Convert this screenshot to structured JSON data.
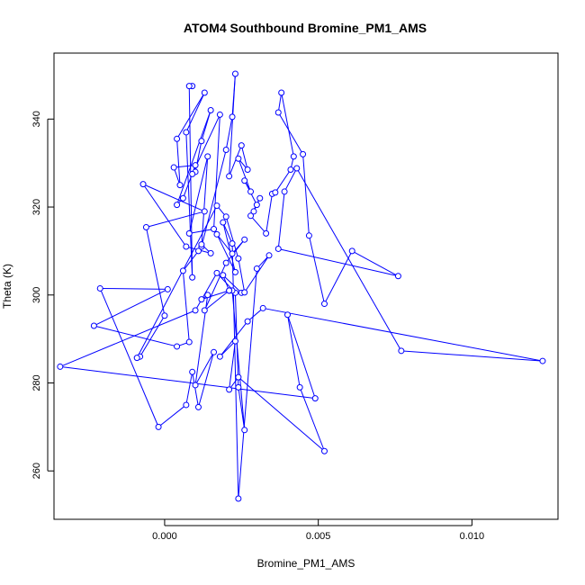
{
  "chart_data": {
    "type": "line",
    "title": "ATOM4 Southbound Bromine_PM1_AMS",
    "xlabel": "Bromine_PM1_AMS",
    "ylabel": "Theta (K)",
    "xlim": [
      -0.0036,
      0.0128
    ],
    "ylim": [
      249,
      355
    ],
    "xticks": [
      0.0,
      0.005,
      0.01
    ],
    "xtick_labels": [
      "0.000",
      "0.005",
      "0.010"
    ],
    "yticks": [
      260,
      280,
      300,
      320,
      340
    ],
    "yticks_labels": [
      "260",
      "280",
      "300",
      "320",
      "340"
    ],
    "grid": false,
    "legend": "none",
    "color": "#0000ff",
    "marker": "open-circle",
    "series": [
      {
        "x": [
          0.0009,
          0.0008,
          0.0009,
          0.0007,
          0.0013,
          0.0004,
          0.0005,
          0.0003,
          0.001,
          0.0006,
          0.0004,
          0.0015,
          0.0012,
          0.001,
          0.0009,
          0.0018,
          0.0016,
          0.0008,
          0.0014,
          0.0012,
          0.002,
          0.0022,
          0.0023,
          0.0021,
          0.0025,
          0.0027,
          0.0024,
          0.0028,
          0.0026,
          0.003,
          0.0029,
          0.0031,
          0.0028,
          0.0033,
          0.0035,
          0.0036,
          0.0041,
          0.0042,
          0.0038,
          0.0037,
          0.0045,
          0.0047,
          0.0052,
          0.0061,
          0.0076,
          0.0037,
          0.0039,
          0.0043,
          0.0077,
          0.0123,
          0.0032,
          0.0027,
          0.0018,
          0.0023,
          0.0021,
          0.0024,
          0.0052,
          0.0044,
          0.004,
          0.0049,
          -0.0034,
          0.001,
          0.0017,
          0.0023,
          0.0024,
          0.0026,
          0.0022,
          0.0025,
          0.0019,
          0.0021,
          0.0012,
          0.0014,
          0.001,
          0.0016,
          0.0011,
          0.0009,
          0.0007,
          -0.0002,
          -0.0021,
          0.0001,
          -0.0023,
          0.0004,
          0.0008,
          0.0006,
          0.0011,
          0.0012,
          0.0015,
          0.0007,
          -0.0007,
          0.0013,
          -0.0006,
          0.0,
          -0.0008,
          -0.0009,
          0.0017,
          0.002,
          0.0024,
          0.0026,
          0.0034,
          0.003,
          0.0024,
          0.0022,
          0.0019,
          0.0023,
          0.0017,
          0.0022,
          0.0026,
          0.002,
          0.0013,
          0.0021
        ],
        "y": [
          347.5,
          347.5,
          304,
          337,
          346,
          335.5,
          325,
          329,
          329.5,
          322,
          320.5,
          342,
          335,
          328,
          327.5,
          341,
          315,
          314,
          331.5,
          311,
          333,
          340.5,
          350.3,
          327,
          334,
          328.5,
          331,
          323.5,
          326,
          320.5,
          319,
          322,
          318,
          314,
          323,
          323.3,
          328.5,
          331.5,
          346,
          341.5,
          332,
          313.5,
          298,
          310,
          304.3,
          310.5,
          323.5,
          328.8,
          287.3,
          285,
          297,
          294,
          286,
          289.5,
          278.5,
          281.3,
          264.5,
          279,
          295.5,
          276.5,
          283.7,
          296.5,
          305,
          300.5,
          279,
          269.3,
          301,
          300.5,
          304.5,
          301,
          299,
          300,
          279.5,
          287,
          274.5,
          282.5,
          275,
          270,
          301.5,
          301.3,
          293,
          288.3,
          289.3,
          305.5,
          310,
          311.5,
          309.5,
          311,
          325.2,
          319,
          315.4,
          295.3,
          286,
          285.7,
          320.3,
          317.8,
          308.3,
          300.6,
          309,
          306,
          253.7,
          311.7,
          316.5,
          305.2,
          313.8,
          309.4,
          312.6,
          307.3,
          296.5,
          301
        ]
      }
    ]
  }
}
